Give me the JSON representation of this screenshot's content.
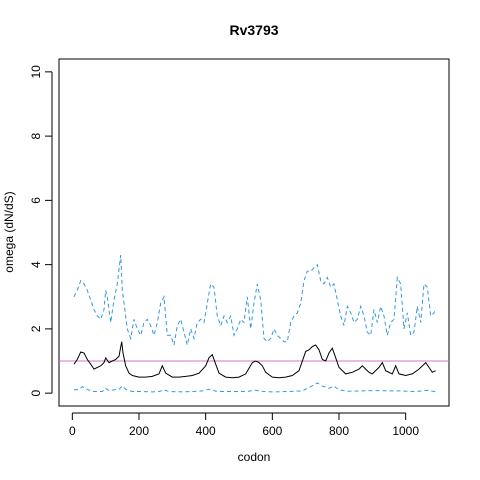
{
  "chart_data": {
    "type": "line",
    "title": "Rv3793",
    "xlabel": "codon",
    "ylabel": "omega (dN/dS)",
    "xlim": [
      -40,
      1130
    ],
    "ylim": [
      -0.4,
      10.4
    ],
    "x_ticks": [
      0,
      200,
      400,
      600,
      800,
      1000
    ],
    "y_ticks": [
      0,
      2,
      4,
      6,
      8,
      10
    ],
    "reference_line": {
      "y": 1,
      "color": "#cc79cc"
    },
    "colors": {
      "estimate": "#000000",
      "bounds": "#3399dd"
    },
    "series": [
      {
        "style": "solid",
        "x": [
          5,
          15,
          25,
          35,
          45,
          55,
          65,
          75,
          85,
          95,
          100,
          110,
          120,
          130,
          140,
          148,
          152,
          160,
          170,
          180,
          200,
          220,
          240,
          260,
          270,
          280,
          300,
          320,
          340,
          360,
          380,
          400,
          410,
          420,
          430,
          440,
          460,
          480,
          500,
          520,
          540,
          550,
          560,
          570,
          580,
          600,
          620,
          640,
          660,
          680,
          700,
          710,
          720,
          730,
          740,
          750,
          760,
          770,
          780,
          790,
          800,
          820,
          840,
          860,
          870,
          880,
          890,
          900,
          920,
          930,
          940,
          960,
          970,
          980,
          1000,
          1020,
          1040,
          1060,
          1070,
          1080,
          1090
        ],
        "y": [
          0.9,
          1.05,
          1.28,
          1.25,
          1.05,
          0.9,
          0.75,
          0.8,
          0.85,
          0.95,
          1.1,
          0.95,
          1.0,
          1.05,
          1.15,
          1.6,
          1.25,
          0.85,
          0.62,
          0.55,
          0.5,
          0.5,
          0.52,
          0.6,
          0.85,
          0.62,
          0.5,
          0.5,
          0.52,
          0.55,
          0.62,
          0.85,
          1.1,
          1.2,
          0.9,
          0.62,
          0.5,
          0.48,
          0.5,
          0.6,
          0.95,
          1.0,
          0.95,
          0.85,
          0.65,
          0.5,
          0.48,
          0.5,
          0.55,
          0.7,
          1.3,
          1.35,
          1.45,
          1.5,
          1.35,
          1.05,
          1.0,
          1.25,
          1.4,
          1.1,
          0.8,
          0.6,
          0.65,
          0.75,
          0.85,
          0.75,
          0.65,
          0.6,
          0.8,
          0.95,
          0.7,
          0.6,
          0.85,
          0.6,
          0.55,
          0.6,
          0.75,
          0.95,
          0.8,
          0.65,
          0.7
        ]
      },
      {
        "style": "dashed",
        "x": [
          5,
          15,
          25,
          35,
          45,
          55,
          65,
          75,
          85,
          95,
          100,
          105,
          115,
          125,
          135,
          145,
          150,
          155,
          165,
          175,
          185,
          195,
          205,
          215,
          225,
          235,
          245,
          255,
          265,
          275,
          285,
          295,
          305,
          315,
          325,
          335,
          345,
          355,
          365,
          375,
          385,
          395,
          405,
          415,
          425,
          435,
          445,
          455,
          465,
          475,
          485,
          495,
          505,
          515,
          525,
          535,
          545,
          555,
          565,
          575,
          585,
          595,
          605,
          615,
          625,
          635,
          645,
          655,
          665,
          675,
          685,
          695,
          705,
          715,
          725,
          735,
          745,
          755,
          765,
          775,
          785,
          795,
          805,
          815,
          825,
          835,
          845,
          855,
          865,
          875,
          885,
          895,
          905,
          915,
          925,
          935,
          945,
          955,
          965,
          975,
          985,
          995,
          1005,
          1015,
          1025,
          1035,
          1045,
          1055,
          1065,
          1075,
          1085,
          1090
        ],
        "y": [
          3.0,
          3.2,
          3.5,
          3.4,
          3.2,
          2.9,
          2.6,
          2.4,
          2.3,
          2.6,
          3.2,
          3.0,
          2.2,
          2.9,
          3.4,
          4.3,
          3.2,
          2.8,
          2.0,
          1.7,
          2.3,
          2.0,
          1.8,
          2.2,
          2.3,
          2.1,
          1.8,
          2.2,
          2.8,
          3.0,
          1.8,
          1.8,
          1.5,
          2.1,
          2.3,
          1.9,
          1.5,
          2.0,
          1.7,
          2.2,
          2.3,
          2.2,
          2.8,
          3.4,
          3.3,
          2.4,
          2.1,
          2.4,
          2.2,
          2.4,
          1.8,
          2.0,
          2.3,
          2.2,
          3.0,
          2.0,
          2.8,
          3.4,
          2.9,
          1.7,
          1.6,
          1.7,
          2.0,
          1.8,
          1.7,
          1.6,
          1.6,
          2.2,
          2.4,
          2.5,
          2.8,
          3.5,
          3.8,
          3.8,
          3.9,
          4.0,
          3.5,
          3.4,
          3.6,
          3.3,
          3.4,
          2.9,
          2.4,
          2.1,
          2.7,
          2.5,
          2.2,
          2.3,
          2.7,
          2.4,
          1.9,
          1.8,
          2.6,
          2.2,
          2.7,
          2.4,
          1.8,
          2.2,
          2.3,
          3.6,
          3.4,
          2.0,
          2.5,
          1.8,
          1.9,
          2.7,
          2.2,
          3.4,
          3.3,
          2.4,
          2.5,
          2.6
        ]
      },
      {
        "style": "dashed",
        "x": [
          5,
          20,
          30,
          45,
          60,
          75,
          90,
          100,
          110,
          125,
          140,
          150,
          160,
          180,
          200,
          240,
          260,
          275,
          290,
          330,
          360,
          390,
          410,
          420,
          430,
          450,
          500,
          530,
          545,
          560,
          575,
          600,
          650,
          690,
          715,
          735,
          750,
          770,
          785,
          800,
          830,
          870,
          900,
          930,
          960,
          990,
          1020,
          1050,
          1065,
          1080,
          1090
        ],
        "y": [
          0.1,
          0.12,
          0.2,
          0.12,
          0.05,
          0.05,
          0.05,
          0.15,
          0.08,
          0.1,
          0.12,
          0.22,
          0.12,
          0.05,
          0.05,
          0.04,
          0.05,
          0.1,
          0.05,
          0.04,
          0.05,
          0.07,
          0.12,
          0.1,
          0.06,
          0.05,
          0.05,
          0.06,
          0.1,
          0.07,
          0.05,
          0.04,
          0.05,
          0.07,
          0.2,
          0.32,
          0.22,
          0.15,
          0.22,
          0.1,
          0.06,
          0.07,
          0.08,
          0.08,
          0.07,
          0.07,
          0.05,
          0.07,
          0.09,
          0.06,
          0.05
        ]
      }
    ]
  }
}
